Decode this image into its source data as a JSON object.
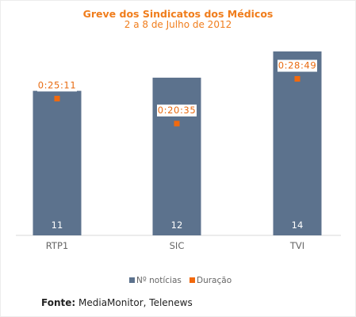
{
  "colors": {
    "bar": "#5c728d",
    "marker": "#f2690d",
    "title": "#f07d1c",
    "tick_text": "#666666",
    "bar_label_text": "#ffffff",
    "duration_text": "#e86a10"
  },
  "source": {
    "label": "Fonte:",
    "text": "MediaMonitor, Telenews"
  },
  "chart_data": {
    "type": "bar",
    "title": "Greve dos Sindicatos dos Médicos",
    "subtitle": "2 a 8 de Julho de 2012",
    "categories": [
      "RTP1",
      "SIC",
      "TVI"
    ],
    "series": [
      {
        "name": "Nº notícias",
        "type": "bar",
        "axis": "left",
        "values": [
          11,
          12,
          14
        ],
        "data_labels": [
          "11",
          "12",
          "14"
        ]
      },
      {
        "name": "Duração",
        "type": "marker",
        "axis": "right",
        "values_seconds": [
          1511,
          1235,
          1729
        ],
        "data_labels": [
          "0:25:11",
          "0:20:35",
          "0:28:49"
        ]
      }
    ],
    "left_axis": {
      "min": 0,
      "max": 15.5,
      "visible": false
    },
    "right_axis": {
      "min": 0,
      "max": 2250,
      "visible": false
    },
    "grid": false,
    "legend_position": "bottom"
  }
}
